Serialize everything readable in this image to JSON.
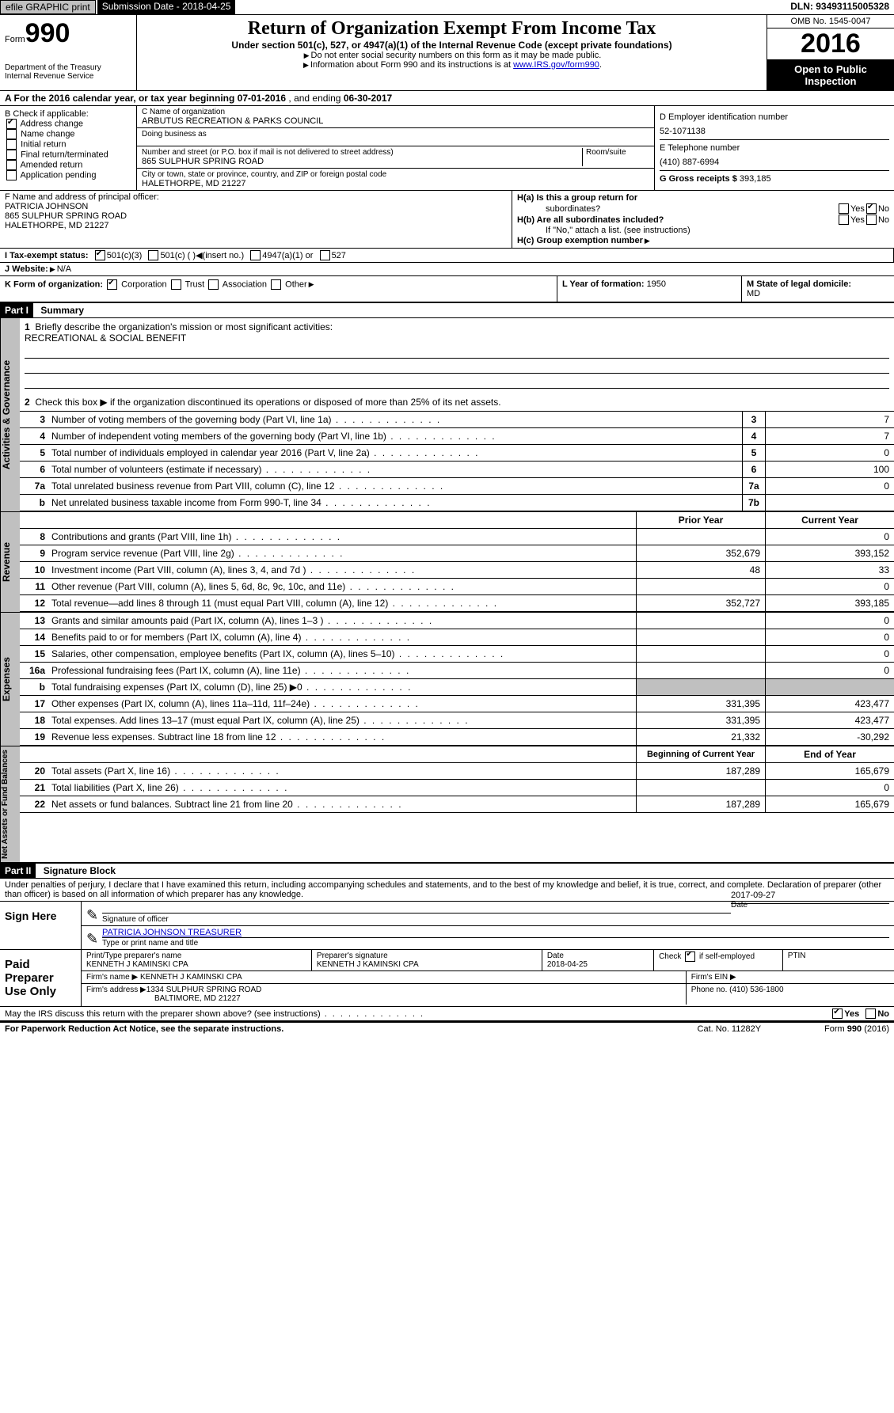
{
  "topbar": {
    "efile": "efile GRAPHIC print",
    "submission_label": "Submission Date - ",
    "submission_date": "2018-04-25",
    "dln_label": "DLN: ",
    "dln": "93493115005328"
  },
  "header": {
    "form_label": "Form",
    "form_number": "990",
    "dept1": "Department of the Treasury",
    "dept2": "Internal Revenue Service",
    "title": "Return of Organization Exempt From Income Tax",
    "subtitle": "Under section 501(c), 527, or 4947(a)(1) of the Internal Revenue Code (except private foundations)",
    "note1": "Do not enter social security numbers on this form as it may be made public.",
    "note2_pre": "Information about Form 990 and its instructions is at ",
    "note2_link": "www.IRS.gov/form990",
    "omb": "OMB No. 1545-0047",
    "year": "2016",
    "open": "Open to Public Inspection"
  },
  "sectionA": {
    "text_pre": "A  For the 2016 calendar year, or tax year beginning ",
    "begin": "07-01-2016",
    "mid": "  , and ending ",
    "end": "06-30-2017"
  },
  "sectionB": {
    "label": "B Check if applicable:",
    "addr_change": "Address change",
    "name_change": "Name change",
    "initial": "Initial return",
    "final": "Final return/terminated",
    "amended": "Amended return",
    "app_pending": "Application pending"
  },
  "sectionC": {
    "name_label": "C Name of organization",
    "name": "ARBUTUS RECREATION & PARKS COUNCIL",
    "dba_label": "Doing business as",
    "dba": "",
    "street_label": "Number and street (or P.O. box if mail is not delivered to street address)",
    "street": "865 SULPHUR SPRING ROAD",
    "room_label": "Room/suite",
    "city_label": "City or town, state or province, country, and ZIP or foreign postal code",
    "city": "HALETHORPE, MD  21227"
  },
  "sectionD": {
    "ein_label": "D Employer identification number",
    "ein": "52-1071138",
    "tel_label": "E Telephone number",
    "tel": "(410) 887-6994",
    "gross_label": "G Gross receipts $ ",
    "gross": "393,185"
  },
  "sectionF": {
    "label": "F  Name and address of principal officer:",
    "name": "PATRICIA JOHNSON",
    "addr1": "865 SULPHUR SPRING ROAD",
    "addr2": "HALETHORPE, MD  21227"
  },
  "sectionH": {
    "ha_label": "H(a)  Is this a group return for",
    "ha_label2": "subordinates?",
    "hb_label": "H(b)  Are all subordinates included?",
    "hb_note": "If \"No,\" attach a list. (see instructions)",
    "hc_label": "H(c)  Group exemption number ",
    "yes": "Yes",
    "no": "No"
  },
  "sectionI": {
    "label": "I  Tax-exempt status:",
    "c3": "501(c)(3)",
    "c": "501(c) (   )",
    "c_insert": "(insert no.)",
    "s4947": "4947(a)(1) or",
    "s527": "527"
  },
  "sectionJ": {
    "label": "J  Website:",
    "value": "N/A"
  },
  "sectionK": {
    "label": "K Form of organization:",
    "corp": "Corporation",
    "trust": "Trust",
    "assoc": "Association",
    "other": "Other"
  },
  "sectionL": {
    "label": "L Year of formation: ",
    "value": "1950"
  },
  "sectionM": {
    "label": "M State of legal domicile: ",
    "value": "MD"
  },
  "part1": {
    "header": "Part I",
    "title": "Summary",
    "l1_label": "Briefly describe the organization's mission or most significant activities:",
    "l1_value": "RECREATIONAL & SOCIAL BENEFIT",
    "l2": "Check this box ▶  if the organization discontinued its operations or disposed of more than 25% of its net assets.",
    "tabs": {
      "gov": "Activities & Governance",
      "rev": "Revenue",
      "exp": "Expenses",
      "net": "Net Assets or Fund Balances"
    },
    "lines_gov": [
      {
        "num": "3",
        "label": "Number of voting members of the governing body (Part VI, line 1a)",
        "box": "3",
        "val": "7"
      },
      {
        "num": "4",
        "label": "Number of independent voting members of the governing body (Part VI, line 1b)",
        "box": "4",
        "val": "7"
      },
      {
        "num": "5",
        "label": "Total number of individuals employed in calendar year 2016 (Part V, line 2a)",
        "box": "5",
        "val": "0"
      },
      {
        "num": "6",
        "label": "Total number of volunteers (estimate if necessary)",
        "box": "6",
        "val": "100"
      },
      {
        "num": "7a",
        "label": "Total unrelated business revenue from Part VIII, column (C), line 12",
        "box": "7a",
        "val": "0"
      },
      {
        "num": "b",
        "label": "Net unrelated business taxable income from Form 990-T, line 34",
        "box": "7b",
        "val": ""
      }
    ],
    "col_prior": "Prior Year",
    "col_current": "Current Year",
    "lines_rev": [
      {
        "num": "8",
        "label": "Contributions and grants (Part VIII, line 1h)",
        "prior": "",
        "curr": "0"
      },
      {
        "num": "9",
        "label": "Program service revenue (Part VIII, line 2g)",
        "prior": "352,679",
        "curr": "393,152"
      },
      {
        "num": "10",
        "label": "Investment income (Part VIII, column (A), lines 3, 4, and 7d )",
        "prior": "48",
        "curr": "33"
      },
      {
        "num": "11",
        "label": "Other revenue (Part VIII, column (A), lines 5, 6d, 8c, 9c, 10c, and 11e)",
        "prior": "",
        "curr": "0"
      },
      {
        "num": "12",
        "label": "Total revenue—add lines 8 through 11 (must equal Part VIII, column (A), line 12)",
        "prior": "352,727",
        "curr": "393,185"
      }
    ],
    "lines_exp": [
      {
        "num": "13",
        "label": "Grants and similar amounts paid (Part IX, column (A), lines 1–3 )",
        "prior": "",
        "curr": "0"
      },
      {
        "num": "14",
        "label": "Benefits paid to or for members (Part IX, column (A), line 4)",
        "prior": "",
        "curr": "0"
      },
      {
        "num": "15",
        "label": "Salaries, other compensation, employee benefits (Part IX, column (A), lines 5–10)",
        "prior": "",
        "curr": "0"
      },
      {
        "num": "16a",
        "label": "Professional fundraising fees (Part IX, column (A), line 11e)",
        "prior": "",
        "curr": "0"
      },
      {
        "num": "b",
        "label": "Total fundraising expenses (Part IX, column (D), line 25) ▶0",
        "prior": "shaded",
        "curr": "shaded"
      },
      {
        "num": "17",
        "label": "Other expenses (Part IX, column (A), lines 11a–11d, 11f–24e)",
        "prior": "331,395",
        "curr": "423,477"
      },
      {
        "num": "18",
        "label": "Total expenses. Add lines 13–17 (must equal Part IX, column (A), line 25)",
        "prior": "331,395",
        "curr": "423,477"
      },
      {
        "num": "19",
        "label": "Revenue less expenses. Subtract line 18 from line 12",
        "prior": "21,332",
        "curr": "-30,292"
      }
    ],
    "col_begin": "Beginning of Current Year",
    "col_end": "End of Year",
    "lines_net": [
      {
        "num": "20",
        "label": "Total assets (Part X, line 16)",
        "prior": "187,289",
        "curr": "165,679"
      },
      {
        "num": "21",
        "label": "Total liabilities (Part X, line 26)",
        "prior": "",
        "curr": "0"
      },
      {
        "num": "22",
        "label": "Net assets or fund balances. Subtract line 21 from line 20",
        "prior": "187,289",
        "curr": "165,679"
      }
    ]
  },
  "part2": {
    "header": "Part II",
    "title": "Signature Block",
    "penalty": "Under penalties of perjury, I declare that I have examined this return, including accompanying schedules and statements, and to the best of my knowledge and belief, it is true, correct, and complete. Declaration of preparer (other than officer) is based on all information of which preparer has any knowledge.",
    "sign_here": "Sign Here",
    "sig_label": "Signature of officer",
    "date_label": "Date",
    "sig_date": "2017-09-27",
    "sig_name": "PATRICIA JOHNSON TREASURER",
    "name_label": "Type or print name and title",
    "paid": "Paid Preparer Use Only",
    "prep_name_label": "Print/Type preparer's name",
    "prep_name": "KENNETH J KAMINSKI CPA",
    "prep_sig_label": "Preparer's signature",
    "prep_sig": "KENNETH J KAMINSKI CPA",
    "prep_date_label": "Date",
    "prep_date": "2018-04-25",
    "check_self": "Check         if self-employed",
    "ptin": "PTIN",
    "firm_name_label": "Firm's name    ▶ ",
    "firm_name": "KENNETH J KAMINSKI CPA",
    "firm_ein_label": "Firm's EIN ▶",
    "firm_addr_label": "Firm's address ▶",
    "firm_addr1": "1334 SULPHUR SPRING ROAD",
    "firm_addr2": "BALTIMORE, MD  21227",
    "phone_label": "Phone no. ",
    "phone": "(410) 536-1800",
    "discuss": "May the IRS discuss this return with the preparer shown above? (see instructions)",
    "yes": "Yes",
    "no": "No"
  },
  "footer": {
    "paperwork": "For Paperwork Reduction Act Notice, see the separate instructions.",
    "cat": "Cat. No. 11282Y",
    "form": "Form 990 (2016)"
  }
}
